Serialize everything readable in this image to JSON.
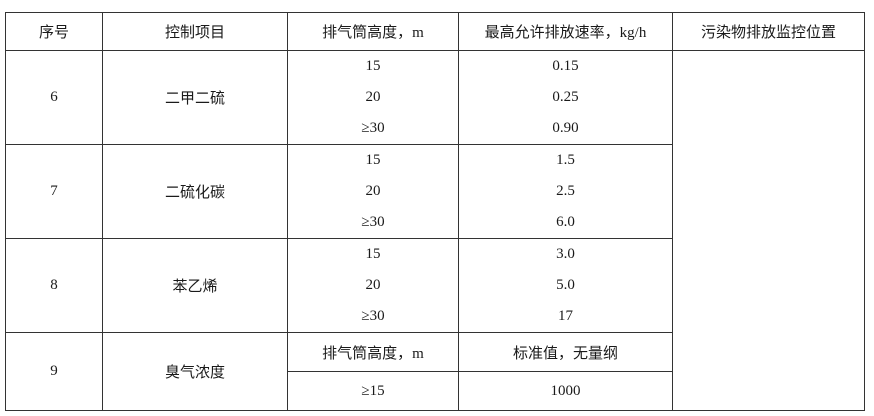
{
  "header": [
    "序号",
    "控制项目",
    "排气筒高度，m",
    "最高允许排放速率，kg/h",
    "污染物排放监控位置"
  ],
  "groups": [
    {
      "no": "6",
      "item": "二甲二硫",
      "rows": [
        [
          "15",
          "0.15"
        ],
        [
          "20",
          "0.25"
        ],
        [
          "≥30",
          "0.90"
        ]
      ]
    },
    {
      "no": "7",
      "item": "二硫化碳",
      "rows": [
        [
          "15",
          "1.5"
        ],
        [
          "20",
          "2.5"
        ],
        [
          "≥30",
          "6.0"
        ]
      ]
    },
    {
      "no": "8",
      "item": "苯乙烯",
      "rows": [
        [
          "15",
          "3.0"
        ],
        [
          "20",
          "5.0"
        ],
        [
          "≥30",
          "17"
        ]
      ]
    }
  ],
  "odor": {
    "no": "9",
    "item": "臭气浓度",
    "sub_header": [
      "排气筒高度，m",
      "标准值，无量纲"
    ],
    "row": [
      "≥15",
      "1000"
    ]
  },
  "monitor_location": ""
}
